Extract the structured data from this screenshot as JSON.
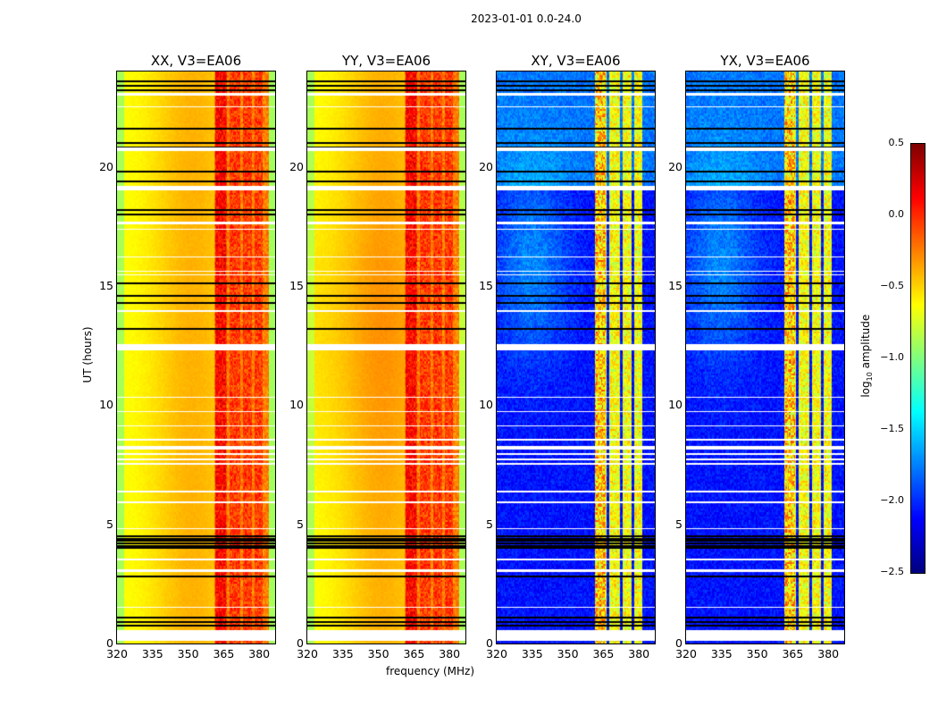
{
  "chart_data": {
    "type": "heatmap",
    "title": "2023-01-01 0.0-24.0",
    "xlabel": "frequency (MHz)",
    "ylabel": "UT (hours)",
    "xlim": [
      320,
      386.7
    ],
    "ylim": [
      0,
      24
    ],
    "xticks": [
      "320",
      "335",
      "350",
      "365",
      "380"
    ],
    "yticks": [
      "0",
      "5",
      "10",
      "15",
      "20"
    ],
    "panels": [
      {
        "title": "XX, V3=EA06",
        "kind": "parallel"
      },
      {
        "title": "YY, V3=EA06",
        "kind": "parallel"
      },
      {
        "title": "XY, V3=EA06",
        "kind": "cross"
      },
      {
        "title": "YX, V3=EA06",
        "kind": "cross"
      }
    ],
    "bright_bands_mhz": [
      [
        361.5,
        366.5
      ],
      [
        367.5,
        372
      ],
      [
        373,
        377
      ],
      [
        378,
        381.5
      ]
    ],
    "flagged_white_ut": [
      [
        23.0,
        23.1
      ],
      [
        22.5,
        22.55
      ],
      [
        20.65,
        20.8
      ],
      [
        19.0,
        19.2
      ],
      [
        17.6,
        17.7
      ],
      [
        17.35,
        17.4
      ],
      [
        16.2,
        16.25
      ],
      [
        15.6,
        15.65
      ],
      [
        15.45,
        15.5
      ],
      [
        13.9,
        14.0
      ],
      [
        12.3,
        12.55
      ],
      [
        10.3,
        10.35
      ],
      [
        9.7,
        9.75
      ],
      [
        9.1,
        9.15
      ],
      [
        8.5,
        8.6
      ],
      [
        8.15,
        8.3
      ],
      [
        7.9,
        7.98
      ],
      [
        7.7,
        7.78
      ],
      [
        7.5,
        7.56
      ],
      [
        6.35,
        6.42
      ],
      [
        5.9,
        5.95
      ],
      [
        4.8,
        4.85
      ],
      [
        3.5,
        3.55
      ],
      [
        3.0,
        3.1
      ],
      [
        1.5,
        1.55
      ],
      [
        0.1,
        0.55
      ]
    ],
    "flagged_black_ut": [
      23.6,
      23.4,
      23.2,
      21.6,
      21.0,
      20.8,
      19.8,
      19.4,
      18.2,
      18.0,
      15.1,
      14.6,
      14.3,
      13.2,
      4.5,
      4.4,
      4.3,
      4.2,
      4.1,
      4.0,
      2.8,
      1.1,
      0.9,
      0.75
    ],
    "colorbar": {
      "label": "log10 amplitude",
      "label_main": "log",
      "label_sub": "10",
      "label_rest": " amplitude",
      "colormap": "jet",
      "range": [
        -2.5,
        0.5
      ],
      "ticks": [
        "0.5",
        "0.0",
        "−0.5",
        "−1.0",
        "−1.5",
        "−2.0",
        "−2.5"
      ]
    }
  }
}
